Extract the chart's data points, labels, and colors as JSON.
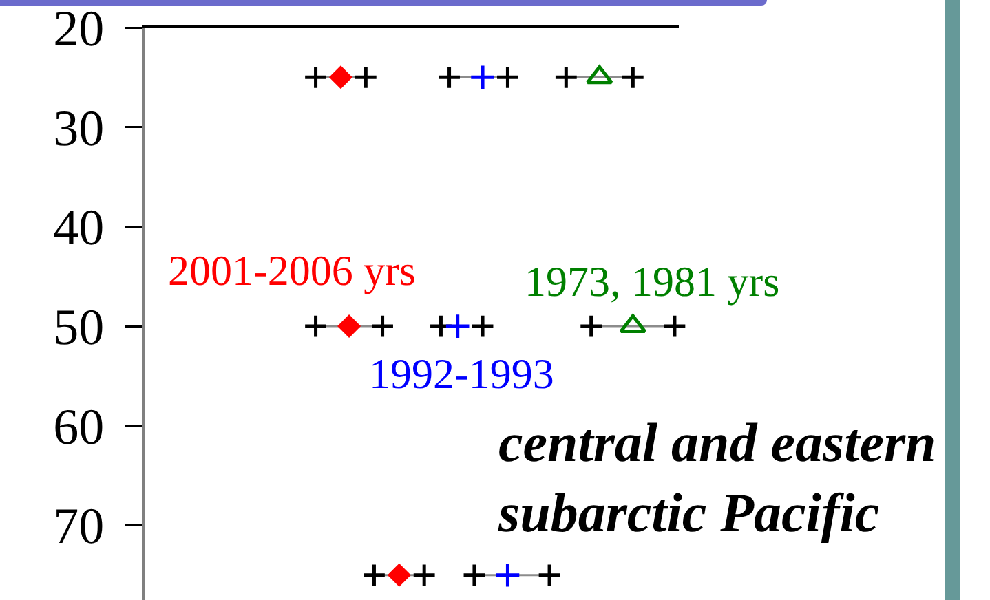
{
  "chart_data": {
    "type": "scatter",
    "annotations": [
      "central and eastern subarctic Pacific"
    ],
    "tick_labels": "y",
    "ylim": [
      77.5,
      20
    ],
    "yticks": [
      20,
      30,
      40,
      50,
      60,
      70
    ],
    "categories": [
      null,
      null,
      null,
      null,
      null,
      null,
      null,
      null,
      null,
      null,
      null,
      null,
      null,
      null,
      null,
      null,
      null,
      null,
      null,
      null,
      null,
      null,
      null,
      null,
      null,
      null,
      null,
      null,
      null,
      null,
      null,
      null,
      null,
      null,
      null,
      null,
      null,
      null,
      null,
      null,
      null,
      null,
      null,
      null,
      null,
      null,
      null,
      null,
      null,
      null,
      null,
      null,
      null,
      null,
      null,
      null,
      null,
      null,
      null,
      null,
      null,
      null,
      null,
      null
    ],
    "series": [
      {
        "type": "line",
        "color": "#000000",
        "marker": "cross",
        "values": [
          null,
          null,
          null,
          null,
          null,
          null,
          null,
          null,
          null,
          null,
          null,
          null,
          null,
          null,
          null,
          null,
          null,
          null,
          null,
          null,
          25,
          null,
          null,
          null,
          null,
          null,
          25,
          null,
          null,
          null,
          null,
          null,
          null,
          null,
          null,
          null,
          null,
          null,
          null,
          null,
          null,
          null,
          null,
          null,
          null,
          null,
          null,
          null,
          null,
          null,
          null,
          null,
          null,
          null,
          null,
          null,
          null,
          null,
          null,
          null,
          null,
          null,
          null,
          null
        ]
      },
      {
        "type": "line",
        "color": "#000000",
        "marker": "cross",
        "values": [
          null,
          null,
          null,
          null,
          null,
          null,
          null,
          null,
          null,
          null,
          null,
          null,
          null,
          null,
          null,
          null,
          null,
          null,
          null,
          null,
          50,
          null,
          null,
          null,
          null,
          null,
          null,
          null,
          50,
          null,
          null,
          null,
          null,
          null,
          null,
          null,
          null,
          null,
          null,
          null,
          null,
          null,
          null,
          null,
          null,
          null,
          null,
          null,
          null,
          null,
          null,
          null,
          null,
          null,
          null,
          null,
          null,
          null,
          null,
          null,
          null,
          null,
          null,
          null
        ]
      },
      {
        "type": "line",
        "color": "#000000",
        "marker": "cross",
        "values": [
          null,
          null,
          null,
          null,
          null,
          null,
          null,
          null,
          null,
          null,
          null,
          null,
          null,
          null,
          null,
          null,
          null,
          null,
          null,
          null,
          null,
          null,
          null,
          null,
          null,
          null,
          null,
          75,
          null,
          null,
          null,
          null,
          null,
          75,
          null,
          null,
          null,
          null,
          null,
          null,
          null,
          null,
          null,
          null,
          null,
          null,
          null,
          null,
          null,
          null,
          null,
          null,
          null,
          null,
          null,
          null,
          null,
          null,
          null,
          null,
          null,
          null,
          null,
          null
        ]
      },
      {
        "type": "line",
        "color": "#000000",
        "marker": "cross",
        "values": [
          null,
          null,
          null,
          null,
          null,
          null,
          null,
          null,
          null,
          null,
          null,
          null,
          null,
          null,
          null,
          null,
          null,
          null,
          null,
          null,
          null,
          null,
          null,
          null,
          null,
          null,
          null,
          null,
          null,
          null,
          null,
          null,
          null,
          null,
          null,
          null,
          25,
          null,
          null,
          null,
          null,
          null,
          null,
          25,
          null,
          null,
          null,
          null,
          null,
          null,
          null,
          null,
          null,
          null,
          null,
          null,
          null,
          null,
          null,
          null,
          null,
          null,
          null,
          null
        ]
      },
      {
        "type": "scatter",
        "color": "#000000",
        "marker": "cross",
        "values": [
          null,
          null,
          null,
          null,
          null,
          null,
          null,
          null,
          null,
          null,
          null,
          null,
          null,
          null,
          null,
          null,
          null,
          null,
          null,
          null,
          null,
          null,
          null,
          null,
          null,
          null,
          null,
          null,
          null,
          null,
          null,
          null,
          null,
          null,
          null,
          50,
          null,
          null,
          null,
          null,
          50,
          null,
          null,
          null,
          null,
          null,
          null,
          null,
          null,
          null,
          null,
          null,
          null,
          null,
          null,
          null,
          null,
          null,
          null,
          null,
          null,
          null,
          null,
          null
        ]
      },
      {
        "type": "line",
        "color": "#000000",
        "marker": "cross",
        "values": [
          null,
          null,
          null,
          null,
          null,
          null,
          null,
          null,
          null,
          null,
          null,
          null,
          null,
          null,
          null,
          null,
          null,
          null,
          null,
          null,
          null,
          null,
          null,
          null,
          null,
          null,
          null,
          null,
          null,
          null,
          null,
          null,
          null,
          null,
          null,
          null,
          null,
          null,
          null,
          75,
          null,
          null,
          null,
          null,
          null,
          null,
          null,
          null,
          75,
          null,
          null,
          null,
          null,
          null,
          null,
          null,
          null,
          null,
          null,
          null,
          null,
          null,
          null,
          null
        ]
      },
      {
        "type": "line",
        "color": "#000000",
        "marker": "cross",
        "values": [
          null,
          null,
          null,
          null,
          null,
          null,
          null,
          null,
          null,
          null,
          null,
          null,
          null,
          null,
          null,
          null,
          null,
          null,
          null,
          null,
          null,
          null,
          null,
          null,
          null,
          null,
          null,
          null,
          null,
          null,
          null,
          null,
          null,
          null,
          null,
          null,
          null,
          null,
          null,
          null,
          null,
          null,
          null,
          null,
          null,
          null,
          null,
          null,
          null,
          null,
          25,
          null,
          null,
          null,
          null,
          null,
          null,
          null,
          25,
          null,
          null,
          null,
          null,
          null
        ]
      },
      {
        "type": "line",
        "color": "#000000",
        "marker": "cross",
        "values": [
          null,
          null,
          null,
          null,
          null,
          null,
          null,
          null,
          null,
          null,
          null,
          null,
          null,
          null,
          null,
          null,
          null,
          null,
          null,
          null,
          null,
          null,
          null,
          null,
          null,
          null,
          null,
          null,
          null,
          null,
          null,
          null,
          null,
          null,
          null,
          null,
          null,
          null,
          null,
          null,
          null,
          null,
          null,
          null,
          null,
          null,
          null,
          null,
          null,
          null,
          null,
          null,
          null,
          50,
          null,
          null,
          null,
          null,
          null,
          null,
          null,
          null,
          null,
          50
        ]
      },
      {
        "name": "2001-2006 yrs",
        "color": "#ff0000",
        "marker": "diamond",
        "values": [
          null,
          null,
          null,
          null,
          null,
          null,
          null,
          null,
          null,
          null,
          null,
          null,
          null,
          null,
          null,
          null,
          null,
          null,
          null,
          null,
          null,
          null,
          null,
          25,
          50,
          null,
          null,
          null,
          null,
          null,
          75,
          null,
          null,
          null,
          null,
          null,
          null,
          null,
          null,
          null,
          null,
          null,
          null,
          null,
          null,
          null,
          null,
          null,
          null,
          null,
          null,
          null,
          null,
          null,
          null,
          null,
          null,
          null,
          null,
          null,
          null,
          null,
          null,
          null
        ]
      },
      {
        "name": "1992-1993",
        "color": "#0000ff",
        "marker": "cross",
        "values": [
          null,
          null,
          null,
          null,
          null,
          null,
          null,
          null,
          null,
          null,
          null,
          null,
          null,
          null,
          null,
          null,
          null,
          null,
          null,
          null,
          null,
          null,
          null,
          null,
          null,
          null,
          null,
          null,
          null,
          null,
          null,
          null,
          null,
          null,
          null,
          null,
          null,
          50,
          null,
          null,
          25,
          null,
          null,
          75,
          null,
          null,
          null,
          null,
          null,
          null,
          null,
          null,
          null,
          null,
          null,
          null,
          null,
          null,
          null,
          null,
          null,
          null,
          null,
          null
        ]
      },
      {
        "name": "1973, 1981 yrs",
        "color": "#008000",
        "marker": "triangle",
        "values": [
          null,
          null,
          null,
          null,
          null,
          null,
          null,
          null,
          null,
          null,
          null,
          null,
          null,
          null,
          null,
          null,
          null,
          null,
          null,
          null,
          null,
          null,
          null,
          null,
          null,
          null,
          null,
          null,
          null,
          null,
          null,
          null,
          null,
          null,
          null,
          null,
          null,
          null,
          null,
          null,
          null,
          null,
          null,
          null,
          null,
          null,
          null,
          null,
          null,
          null,
          null,
          null,
          null,
          null,
          25,
          null,
          null,
          null,
          50,
          null,
          null,
          null,
          null,
          null
        ]
      }
    ]
  }
}
